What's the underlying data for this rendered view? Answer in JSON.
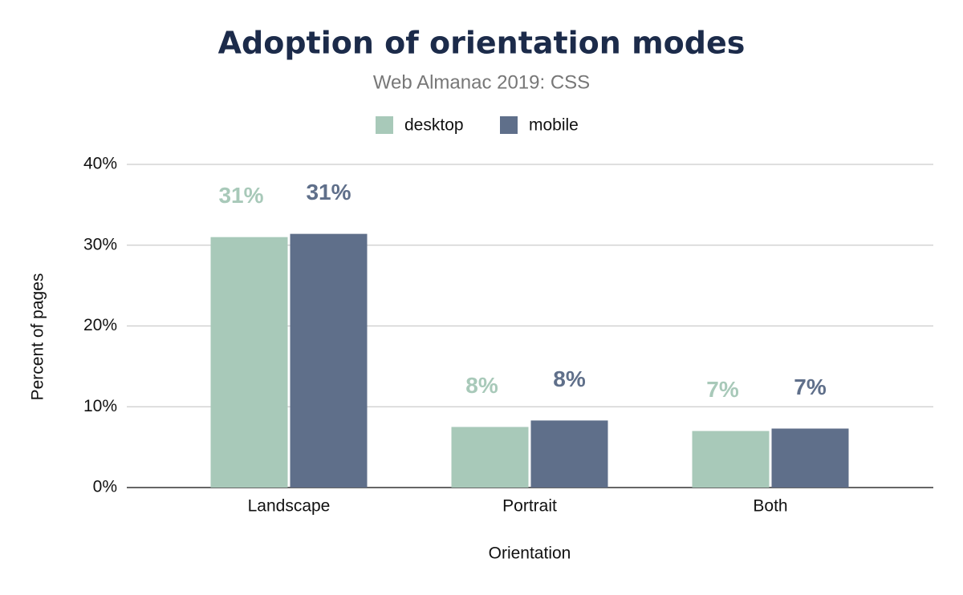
{
  "chart_data": {
    "type": "bar",
    "title": "Adoption of orientation modes",
    "subtitle": "Web Almanac 2019: CSS",
    "x_label": "Orientation",
    "y_label": "Percent of pages",
    "categories": [
      "Landscape",
      "Portrait",
      "Both"
    ],
    "series": [
      {
        "name": "desktop",
        "color": "#a8c9b9",
        "values": [
          31.0,
          7.5,
          7.0
        ],
        "value_labels": [
          "31%",
          "8%",
          "7%"
        ]
      },
      {
        "name": "mobile",
        "color": "#5f6f8a",
        "values": [
          31.4,
          8.3,
          7.3
        ],
        "value_labels": [
          "31%",
          "8%",
          "7%"
        ]
      }
    ],
    "ylim": [
      0,
      40
    ],
    "yticks": [
      {
        "value": 0,
        "label": "0%"
      },
      {
        "value": 10,
        "label": "10%"
      },
      {
        "value": 20,
        "label": "20%"
      },
      {
        "value": 30,
        "label": "30%"
      },
      {
        "value": 40,
        "label": "40%"
      }
    ],
    "grid": true,
    "legend": "top"
  }
}
